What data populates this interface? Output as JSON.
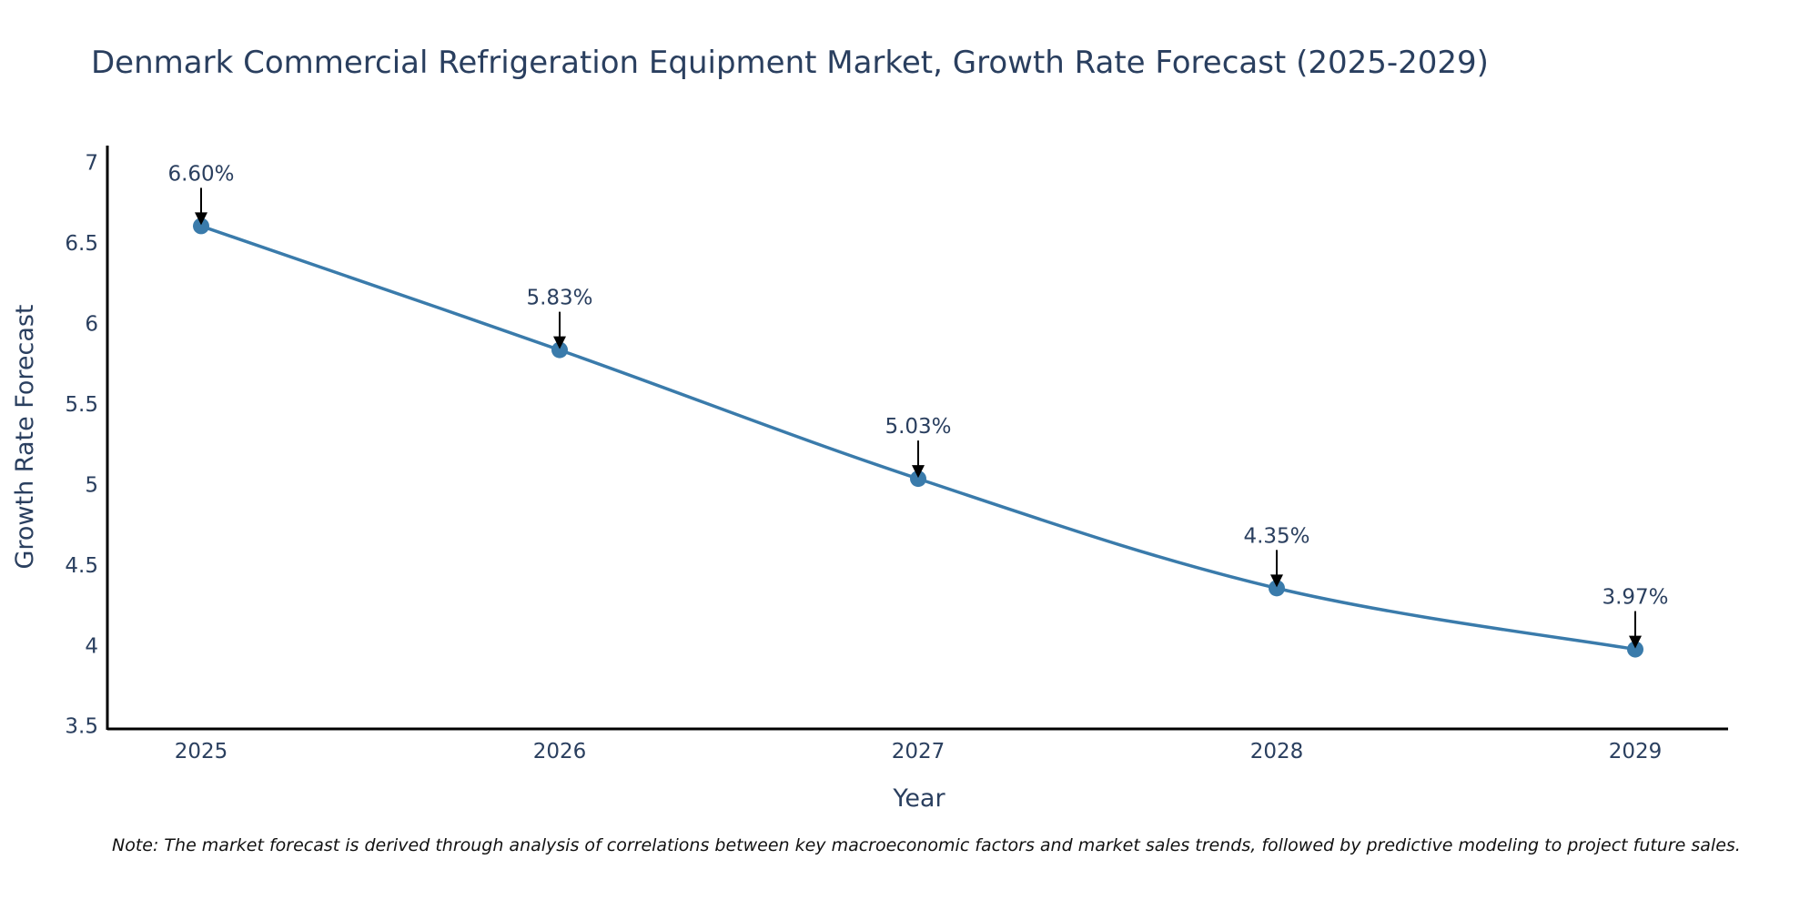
{
  "chart_data": {
    "type": "line",
    "title": "Denmark Commercial Refrigeration Equipment Market, Growth Rate Forecast (2025-2029)",
    "xlabel": "Year",
    "ylabel": "Growth Rate Forecast",
    "categories": [
      "2025",
      "2026",
      "2027",
      "2028",
      "2029"
    ],
    "values": [
      6.6,
      5.83,
      5.03,
      4.35,
      3.97
    ],
    "data_labels": [
      "6.60%",
      "5.83%",
      "5.03%",
      "4.35%",
      "3.97%"
    ],
    "ylim": [
      3.47,
      7.1
    ],
    "yticks": [
      3.5,
      4,
      4.5,
      5,
      5.5,
      6,
      6.5,
      7
    ],
    "ytick_labels": [
      "3.5",
      "4",
      "4.5",
      "5",
      "5.5",
      "6",
      "6.5",
      "7"
    ],
    "grid": false,
    "legend": "none",
    "line_color": "#3a7bab",
    "marker_color": "#3a7bab",
    "arrow_color": "#000000",
    "text_color": "#2a3f5f"
  },
  "note": "Note: The market forecast is derived through analysis of correlations between key macroeconomic factors and market sales trends, followed by predictive modeling to project future sales."
}
